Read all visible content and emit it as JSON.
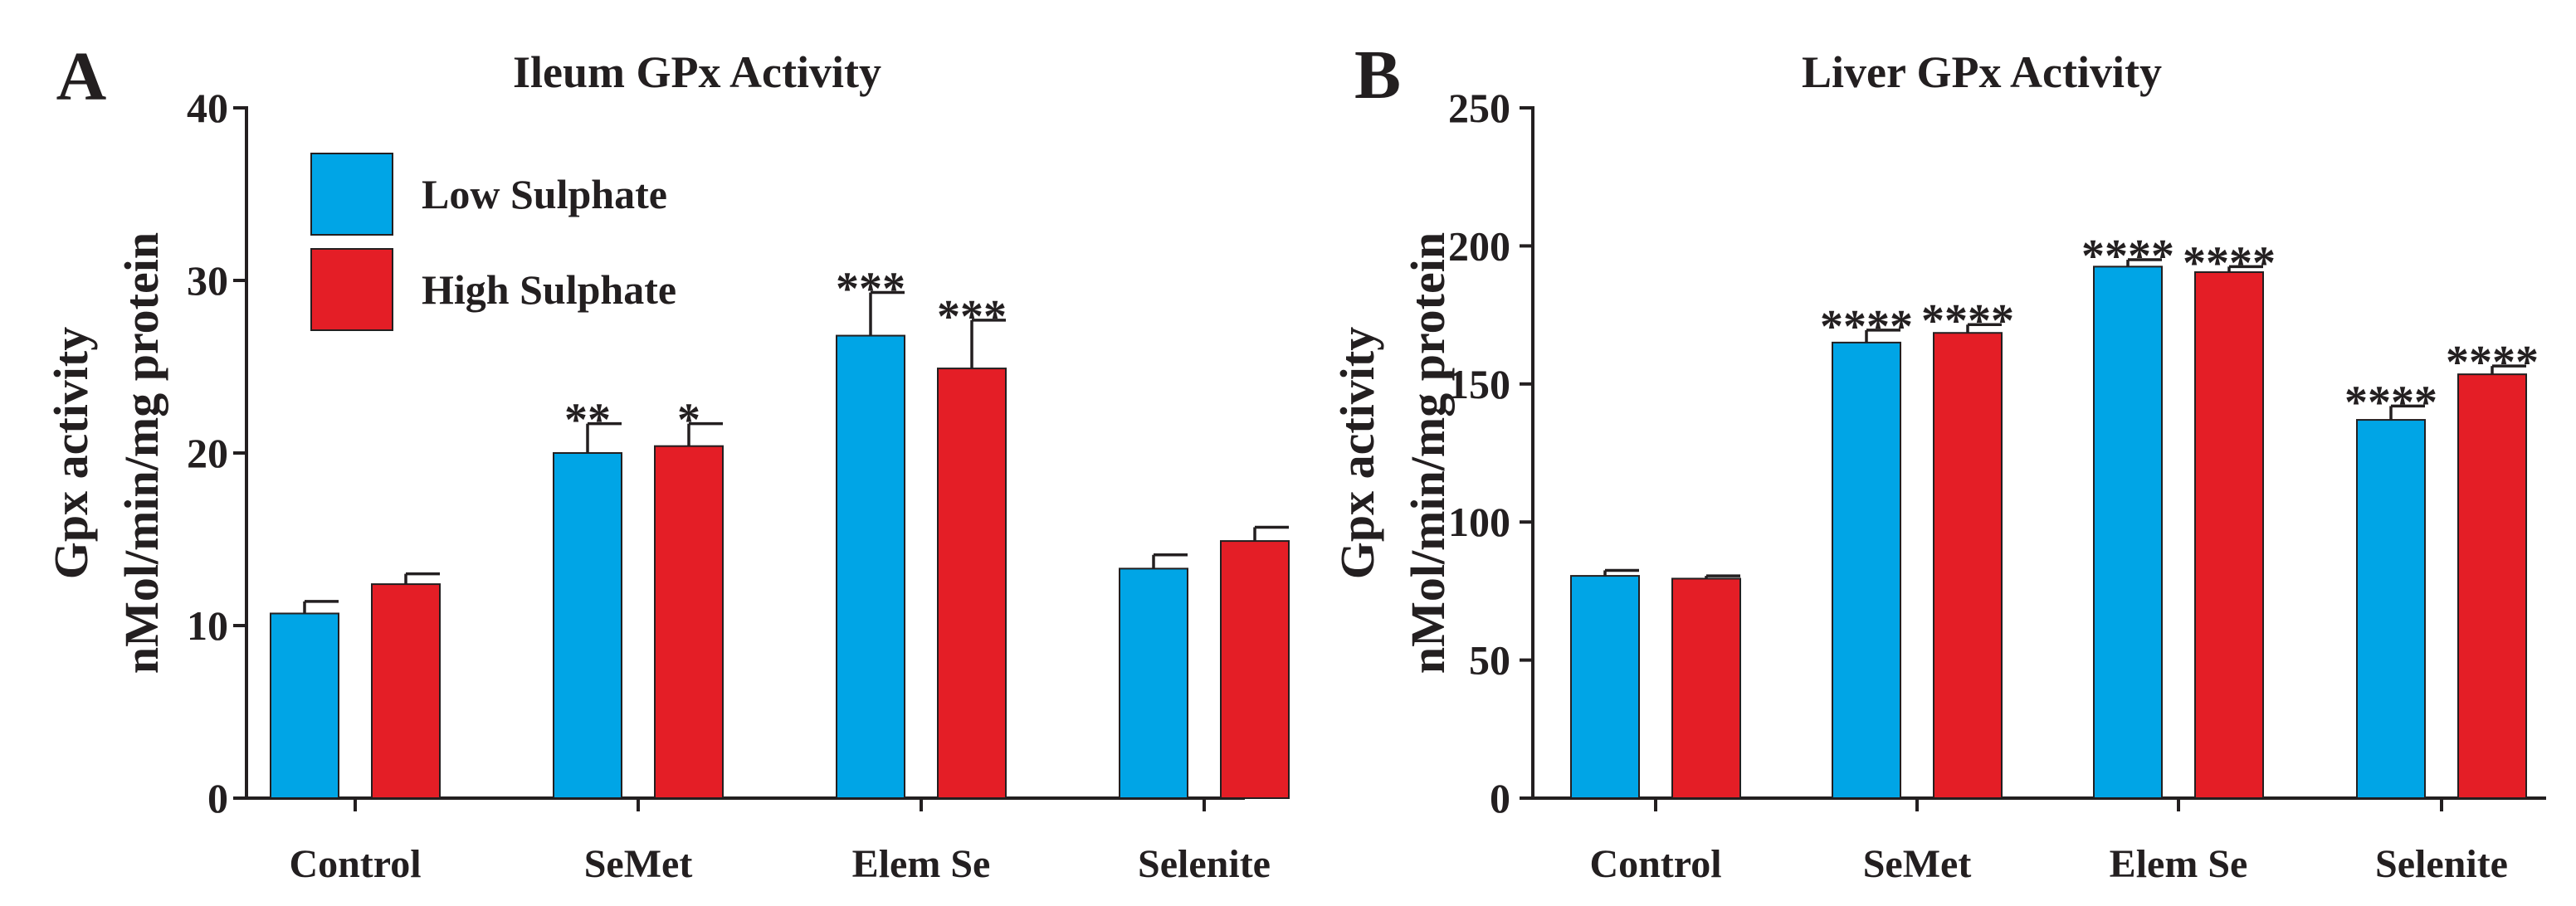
{
  "legend": [
    {
      "label": "Low Sulphate",
      "color": "#00a5e6"
    },
    {
      "label": "High Sulphate",
      "color": "#e41e26"
    }
  ],
  "chart_data": [
    {
      "type": "bar",
      "panel_letter": "A",
      "title": "Ileum GPx Activity",
      "ylabel_line1": "Gpx activity",
      "ylabel_line2": "nMol/min/mg protein",
      "xlabel": "",
      "ylim": [
        0,
        40
      ],
      "yticks": [
        0,
        10,
        20,
        30,
        40
      ],
      "categories": [
        "Control",
        "SeMet",
        "Elem Se",
        "Selenite"
      ],
      "grid": false,
      "legend_position": "top-left",
      "series": [
        {
          "name": "Low Sulphate",
          "color": "#00a5e6",
          "values": [
            10.7,
            20.0,
            26.8,
            13.3
          ],
          "errors": [
            0.7,
            1.7,
            2.5,
            0.8
          ],
          "significance": [
            "",
            "**",
            "***",
            ""
          ]
        },
        {
          "name": "High Sulphate",
          "color": "#e41e26",
          "values": [
            12.4,
            20.4,
            24.9,
            14.9
          ],
          "errors": [
            0.6,
            1.3,
            2.8,
            0.8
          ],
          "significance": [
            "",
            "*",
            "***",
            ""
          ]
        }
      ]
    },
    {
      "type": "bar",
      "panel_letter": "B",
      "title": "Liver GPx Activity",
      "ylabel_line1": "Gpx activity",
      "ylabel_line2": "nMol/min/mg protein",
      "xlabel": "",
      "ylim": [
        0,
        250
      ],
      "yticks": [
        0,
        50,
        100,
        150,
        200,
        250
      ],
      "categories": [
        "Control",
        "SeMet",
        "Elem Se",
        "Selenite"
      ],
      "grid": false,
      "legend_position": "none",
      "series": [
        {
          "name": "Low Sulphate",
          "color": "#00a5e6",
          "values": [
            80.5,
            165,
            192.5,
            137
          ],
          "errors": [
            2,
            4.5,
            2.5,
            5
          ],
          "significance": [
            "",
            "****",
            "****",
            "****"
          ]
        },
        {
          "name": "High Sulphate",
          "color": "#e41e26",
          "values": [
            79.5,
            168.5,
            190.5,
            153.5
          ],
          "errors": [
            1,
            3,
            2,
            3
          ],
          "significance": [
            "",
            "****",
            "****",
            "****"
          ]
        }
      ]
    }
  ]
}
